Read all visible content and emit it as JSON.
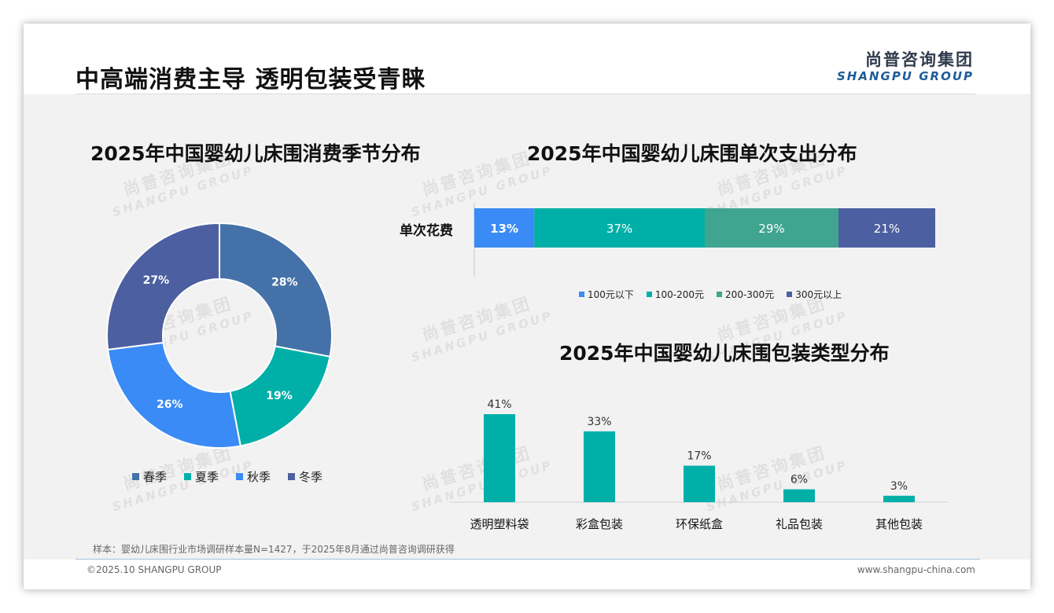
{
  "header": {
    "title": "中高端消费主导 透明包装受青睐",
    "logo_cn": "尚普咨询集团",
    "logo_en": "SHANGPU GROUP"
  },
  "watermark": {
    "cn": "尚普咨询集团",
    "en": "SHANGPU GROUP"
  },
  "colors": {
    "steel_blue": "#4472a8",
    "teal": "#00b0a8",
    "bright_blue": "#3a8bf5",
    "slate": "#4c5fa0",
    "green_teal": "#3fa58f"
  },
  "chart_data": [
    {
      "type": "pie",
      "variant": "donut",
      "title": "2025年中国婴幼儿床围消费季节分布",
      "categories": [
        "春季",
        "夏季",
        "秋季",
        "冬季"
      ],
      "values": [
        28,
        19,
        26,
        27
      ],
      "labels": [
        "28%",
        "19%",
        "26%",
        "27%"
      ],
      "colors": [
        "#4472a8",
        "#00b0a8",
        "#3a8bf5",
        "#4c5fa0"
      ],
      "legend_position": "bottom"
    },
    {
      "type": "bar",
      "variant": "stacked-horizontal-100",
      "title": "2025年中国婴幼儿床围单次支出分布",
      "categories": [
        "单次花费"
      ],
      "series": [
        {
          "name": "100元以下",
          "values": [
            13
          ],
          "label": "13%",
          "color": "#3a8bf5"
        },
        {
          "name": "100-200元",
          "values": [
            37
          ],
          "label": "37%",
          "color": "#00b0a8"
        },
        {
          "name": "200-300元",
          "values": [
            29
          ],
          "label": "29%",
          "color": "#3fa58f"
        },
        {
          "name": "300元以上",
          "values": [
            21
          ],
          "label": "21%",
          "color": "#4c5fa0"
        }
      ],
      "legend_position": "bottom"
    },
    {
      "type": "bar",
      "title": "2025年中国婴幼儿床围包装类型分布",
      "categories": [
        "透明塑料袋",
        "彩盒包装",
        "环保纸盒",
        "礼品包装",
        "其他包装"
      ],
      "values": [
        41,
        33,
        17,
        6,
        3
      ],
      "labels": [
        "41%",
        "33%",
        "17%",
        "6%",
        "3%"
      ],
      "color": "#00b0a8"
    }
  ],
  "footer": {
    "note": "样本：婴幼儿床围行业市场调研样本量N=1427，于2025年8月通过尚普咨询调研获得",
    "copyright": "©2025.10 SHANGPU GROUP",
    "website": "www.shangpu-china.com"
  }
}
